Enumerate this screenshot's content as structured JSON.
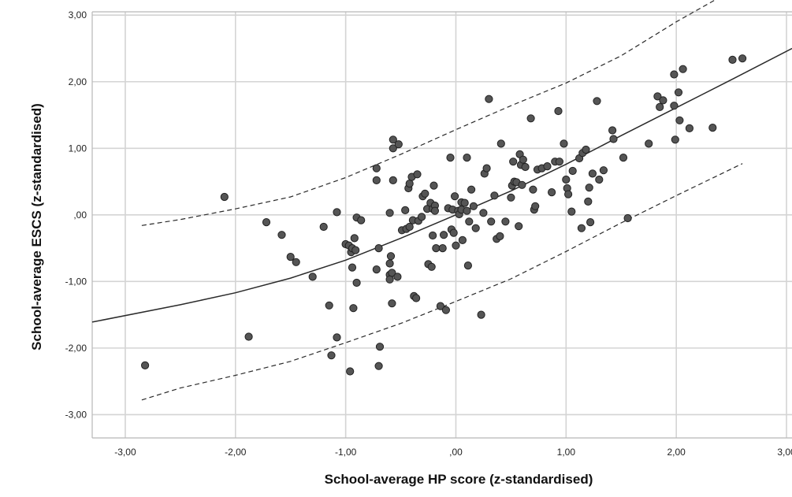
{
  "chart_data": {
    "type": "scatter",
    "title": "",
    "xlabel": "School-average HP score (z-standardised)",
    "ylabel": "School-average ESCS (z-standardised)",
    "xlim": [
      -3.3,
      3.05
    ],
    "ylim": [
      -3.35,
      3.05
    ],
    "x_ticks": [
      -3,
      -2,
      -1,
      0,
      1,
      2,
      3
    ],
    "x_tick_labels": [
      "-3,00",
      "-2,00",
      "-1,00",
      ",00",
      "1,00",
      "2,00",
      "3,00"
    ],
    "y_ticks": [
      3,
      2,
      1,
      0,
      -1,
      -2,
      -3
    ],
    "y_tick_labels": [
      "3,00",
      "2,00",
      "1,00",
      ",00",
      "-1,00",
      "-2,00",
      "-3,00"
    ],
    "grid": true,
    "marker_color": "#555555",
    "points": [
      [
        -2.82,
        -2.26
      ],
      [
        -2.1,
        0.27
      ],
      [
        -1.88,
        -1.83
      ],
      [
        -1.72,
        -0.11
      ],
      [
        -1.58,
        -0.3
      ],
      [
        -1.5,
        -0.63
      ],
      [
        -1.45,
        -0.71
      ],
      [
        -1.3,
        -0.93
      ],
      [
        -1.2,
        -0.18
      ],
      [
        -1.15,
        -1.36
      ],
      [
        -1.13,
        -2.11
      ],
      [
        -1.08,
        -1.84
      ],
      [
        -1.08,
        0.04
      ],
      [
        -1.0,
        -0.44
      ],
      [
        -0.97,
        -0.46
      ],
      [
        -0.96,
        -2.35
      ],
      [
        -0.95,
        -0.56
      ],
      [
        -0.94,
        -0.5
      ],
      [
        -0.94,
        -0.79
      ],
      [
        -0.93,
        -1.4
      ],
      [
        -0.92,
        -0.35
      ],
      [
        -0.91,
        -0.53
      ],
      [
        -0.9,
        -1.02
      ],
      [
        -0.9,
        -0.04
      ],
      [
        -0.86,
        -0.08
      ],
      [
        -0.72,
        0.7
      ],
      [
        -0.72,
        0.52
      ],
      [
        -0.72,
        -0.82
      ],
      [
        -0.7,
        -0.5
      ],
      [
        -0.7,
        -2.27
      ],
      [
        -0.69,
        -1.98
      ],
      [
        -0.6,
        0.03
      ],
      [
        -0.6,
        -0.73
      ],
      [
        -0.6,
        -0.9
      ],
      [
        -0.6,
        -0.97
      ],
      [
        -0.59,
        -0.62
      ],
      [
        -0.58,
        -0.87
      ],
      [
        -0.58,
        -1.33
      ],
      [
        -0.57,
        1.13
      ],
      [
        -0.57,
        1.0
      ],
      [
        -0.57,
        0.52
      ],
      [
        -0.53,
        -0.93
      ],
      [
        -0.52,
        1.06
      ],
      [
        -0.49,
        -0.23
      ],
      [
        -0.46,
        0.07
      ],
      [
        -0.45,
        -0.21
      ],
      [
        -0.43,
        0.4
      ],
      [
        -0.42,
        0.47
      ],
      [
        -0.42,
        -0.18
      ],
      [
        -0.4,
        0.57
      ],
      [
        -0.39,
        -0.08
      ],
      [
        -0.38,
        -1.22
      ],
      [
        -0.36,
        -1.25
      ],
      [
        -0.35,
        0.61
      ],
      [
        -0.34,
        -0.09
      ],
      [
        -0.31,
        -0.03
      ],
      [
        -0.3,
        0.28
      ],
      [
        -0.28,
        0.32
      ],
      [
        -0.26,
        0.09
      ],
      [
        -0.25,
        -0.74
      ],
      [
        -0.23,
        0.18
      ],
      [
        -0.22,
        -0.78
      ],
      [
        -0.21,
        -0.31
      ],
      [
        -0.21,
        0.09
      ],
      [
        -0.2,
        0.44
      ],
      [
        -0.19,
        0.14
      ],
      [
        -0.19,
        0.06
      ],
      [
        -0.18,
        -0.5
      ],
      [
        -0.14,
        -1.37
      ],
      [
        -0.12,
        -0.5
      ],
      [
        -0.11,
        -0.3
      ],
      [
        -0.09,
        -1.43
      ],
      [
        -0.07,
        0.1
      ],
      [
        -0.05,
        0.86
      ],
      [
        -0.04,
        -0.22
      ],
      [
        -0.03,
        0.08
      ],
      [
        -0.02,
        -0.27
      ],
      [
        -0.01,
        0.28
      ],
      [
        0.0,
        -0.46
      ],
      [
        0.02,
        0.06
      ],
      [
        0.03,
        0.01
      ],
      [
        0.05,
        0.08
      ],
      [
        0.05,
        0.19
      ],
      [
        0.06,
        -0.38
      ],
      [
        0.08,
        0.18
      ],
      [
        0.1,
        0.06
      ],
      [
        0.1,
        0.86
      ],
      [
        0.11,
        -0.76
      ],
      [
        0.12,
        -0.1
      ],
      [
        0.14,
        0.38
      ],
      [
        0.16,
        0.13
      ],
      [
        0.18,
        -0.2
      ],
      [
        0.23,
        -1.5
      ],
      [
        0.25,
        0.03
      ],
      [
        0.26,
        0.62
      ],
      [
        0.28,
        0.7
      ],
      [
        0.3,
        1.74
      ],
      [
        0.32,
        -0.1
      ],
      [
        0.35,
        0.29
      ],
      [
        0.37,
        -0.36
      ],
      [
        0.4,
        -0.32
      ],
      [
        0.41,
        1.07
      ],
      [
        0.45,
        -0.1
      ],
      [
        0.5,
        0.26
      ],
      [
        0.51,
        0.44
      ],
      [
        0.52,
        0.8
      ],
      [
        0.53,
        0.5
      ],
      [
        0.55,
        0.49
      ],
      [
        0.57,
        -0.17
      ],
      [
        0.58,
        0.91
      ],
      [
        0.59,
        0.75
      ],
      [
        0.6,
        0.45
      ],
      [
        0.61,
        0.83
      ],
      [
        0.63,
        0.72
      ],
      [
        0.68,
        1.45
      ],
      [
        0.7,
        0.38
      ],
      [
        0.71,
        0.08
      ],
      [
        0.72,
        0.13
      ],
      [
        0.74,
        0.68
      ],
      [
        0.78,
        0.7
      ],
      [
        0.83,
        0.73
      ],
      [
        0.87,
        0.34
      ],
      [
        0.9,
        0.8
      ],
      [
        0.93,
        1.56
      ],
      [
        0.94,
        0.8
      ],
      [
        0.98,
        1.07
      ],
      [
        1.0,
        0.53
      ],
      [
        1.01,
        0.4
      ],
      [
        1.02,
        0.31
      ],
      [
        1.05,
        0.05
      ],
      [
        1.06,
        0.66
      ],
      [
        1.12,
        0.85
      ],
      [
        1.14,
        -0.2
      ],
      [
        1.15,
        0.93
      ],
      [
        1.18,
        0.98
      ],
      [
        1.2,
        0.2
      ],
      [
        1.21,
        0.41
      ],
      [
        1.22,
        -0.11
      ],
      [
        1.24,
        0.62
      ],
      [
        1.28,
        1.71
      ],
      [
        1.3,
        0.53
      ],
      [
        1.34,
        0.67
      ],
      [
        1.42,
        1.27
      ],
      [
        1.43,
        1.14
      ],
      [
        1.52,
        0.86
      ],
      [
        1.56,
        -0.05
      ],
      [
        1.75,
        1.07
      ],
      [
        1.83,
        1.78
      ],
      [
        1.85,
        1.62
      ],
      [
        1.88,
        1.72
      ],
      [
        1.98,
        1.64
      ],
      [
        1.98,
        2.11
      ],
      [
        1.99,
        1.13
      ],
      [
        2.02,
        1.84
      ],
      [
        2.03,
        1.42
      ],
      [
        2.06,
        2.19
      ],
      [
        2.12,
        1.3
      ],
      [
        2.33,
        1.31
      ],
      [
        2.51,
        2.33
      ],
      [
        2.6,
        2.35
      ]
    ],
    "fit_lines": [
      {
        "style": "solid",
        "x": [
          -3.3,
          -2.5,
          -2.0,
          -1.5,
          -1.0,
          -0.5,
          0.0,
          0.5,
          1.0,
          1.5,
          2.0,
          2.5,
          3.05
        ],
        "y": [
          -1.61,
          -1.35,
          -1.17,
          -0.95,
          -0.68,
          -0.35,
          0.0,
          0.36,
          0.76,
          1.19,
          1.61,
          2.03,
          2.5
        ]
      },
      {
        "style": "dashed",
        "x": [
          -2.85,
          -2.5,
          -2.0,
          -1.5,
          -1.0,
          -0.5,
          0.0,
          0.5,
          1.0,
          1.5,
          2.0,
          2.45
        ],
        "y": [
          -0.16,
          -0.07,
          0.09,
          0.27,
          0.56,
          0.91,
          1.28,
          1.64,
          1.98,
          2.39,
          2.9,
          3.32
        ]
      },
      {
        "style": "dashed",
        "x": [
          -2.85,
          -2.5,
          -2.0,
          -1.5,
          -1.0,
          -0.5,
          0.0,
          0.5,
          1.0,
          1.5,
          2.0,
          2.6
        ],
        "y": [
          -2.78,
          -2.6,
          -2.41,
          -2.2,
          -1.92,
          -1.63,
          -1.3,
          -0.96,
          -0.55,
          -0.12,
          0.29,
          0.77
        ]
      }
    ]
  }
}
